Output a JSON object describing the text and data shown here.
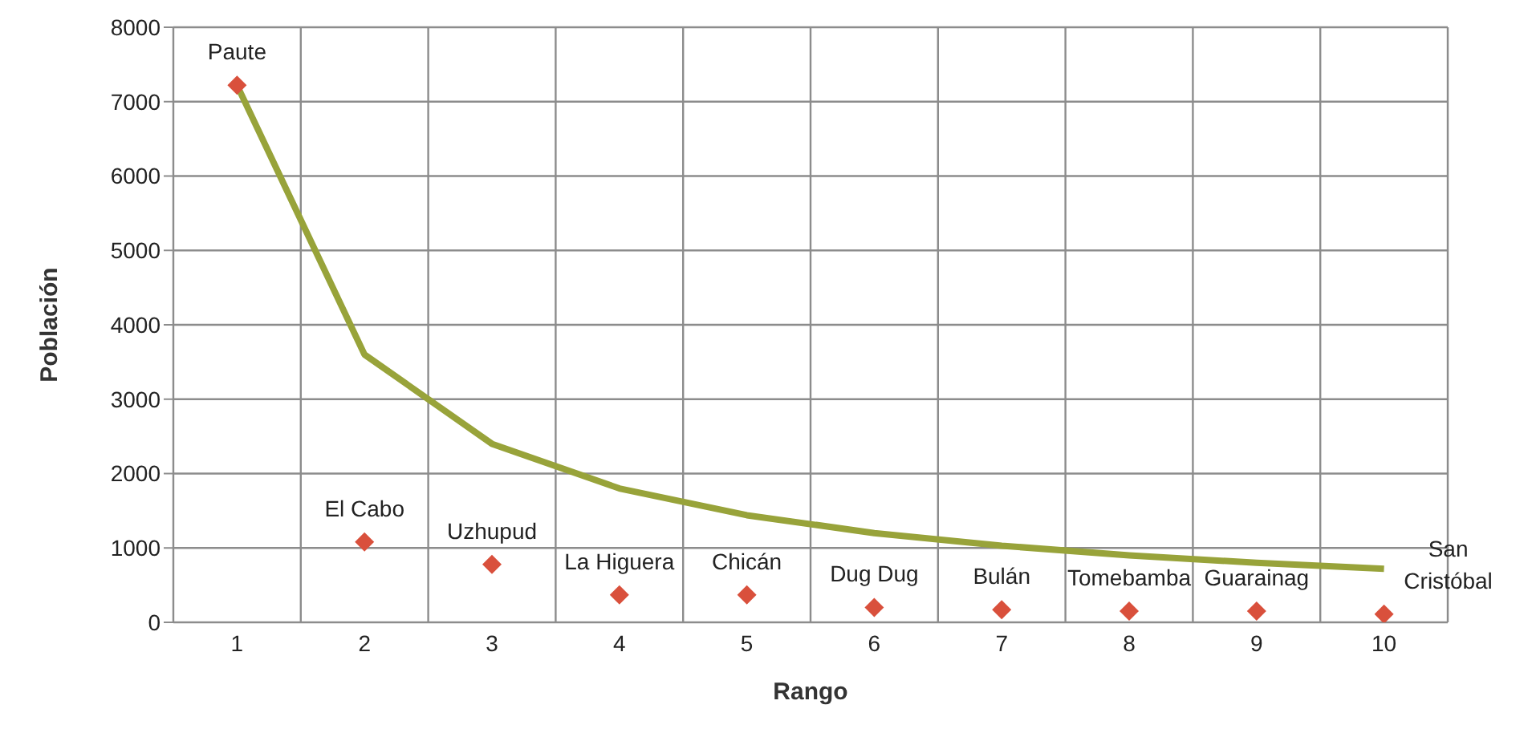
{
  "chart_data": {
    "type": "scatter",
    "xlabel": "Rango",
    "ylabel": "Población",
    "categories": [
      "1",
      "2",
      "3",
      "4",
      "5",
      "6",
      "7",
      "8",
      "9",
      "10"
    ],
    "series": [
      {
        "color": "#d9503c",
        "marker": "diamond",
        "values": [
          7220,
          1080,
          780,
          370,
          370,
          200,
          170,
          150,
          150,
          110
        ]
      },
      {
        "type": "line",
        "color": "#98a33a",
        "marker": "none",
        "values": [
          7220,
          3600,
          2400,
          1800,
          1440,
          1200,
          1030,
          900,
          800,
          720
        ]
      }
    ],
    "ylim": [
      0,
      8000
    ],
    "yticks": [
      0,
      1000,
      2000,
      3000,
      4000,
      5000,
      6000,
      7000,
      8000
    ],
    "grid": true,
    "annotations": [
      {
        "text": "Paute",
        "x": "1",
        "y": 7220
      },
      {
        "text": "El Cabo",
        "x": "2",
        "y": 1080
      },
      {
        "text": "Uzhupud",
        "x": "3",
        "y": 780
      },
      {
        "text": "La Higuera",
        "x": "4",
        "y": 370
      },
      {
        "text": "Chicán",
        "x": "5",
        "y": 370
      },
      {
        "text": "Dug Dug",
        "x": "6",
        "y": 200
      },
      {
        "text": "Bulán",
        "x": "7",
        "y": 170
      },
      {
        "text": "Tomebamba",
        "x": "8",
        "y": 150
      },
      {
        "text": "Guarainag",
        "x": "9",
        "y": 150
      },
      {
        "text": "San Cristóbal",
        "x": "10",
        "y": 110
      }
    ]
  }
}
